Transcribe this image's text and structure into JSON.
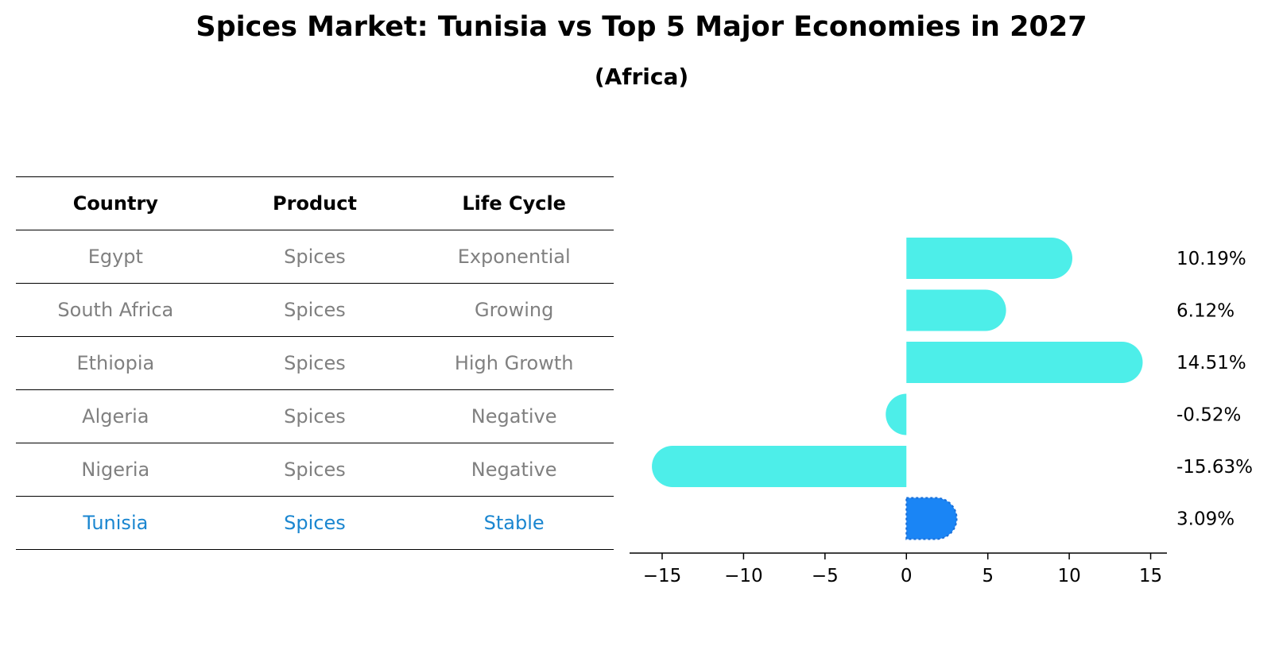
{
  "title": "Spices Market: Tunisia vs Top 5 Major Economies in 2027",
  "subtitle": "(Africa)",
  "table": {
    "headers": [
      "Country",
      "Product",
      "Life Cycle"
    ],
    "rows": [
      [
        "Egypt",
        "Spices",
        "Exponential"
      ],
      [
        "South Africa",
        "Spices",
        "Growing"
      ],
      [
        "Ethiopia",
        "Spices",
        "High Growth"
      ],
      [
        "Algeria",
        "Spices",
        "Negative"
      ],
      [
        "Nigeria",
        "Spices",
        "Negative"
      ],
      [
        "Tunisia",
        "Spices",
        "Stable"
      ]
    ],
    "highlight_row": "Tunisia",
    "text_color": "#808080",
    "highlight_color": "#1a86d0"
  },
  "chart_data": {
    "type": "bar",
    "orientation": "horizontal",
    "categories": [
      "Egypt",
      "South Africa",
      "Ethiopia",
      "Algeria",
      "Nigeria",
      "Tunisia"
    ],
    "values": [
      10.19,
      6.12,
      14.51,
      -0.52,
      -15.63,
      3.09
    ],
    "value_labels": [
      "10.19%",
      "6.12%",
      "14.51%",
      "-0.52%",
      "-15.63%",
      "3.09%"
    ],
    "xlim": [
      -17,
      16
    ],
    "xticks": [
      -15,
      -10,
      -5,
      0,
      5,
      10,
      15
    ],
    "xtick_labels": [
      "−15",
      "−10",
      "−5",
      "0",
      "5",
      "10",
      "15"
    ],
    "bar_color": "#4deee9",
    "highlight_color": "#1a85f5",
    "highlight_category": "Tunisia",
    "grid": false
  }
}
